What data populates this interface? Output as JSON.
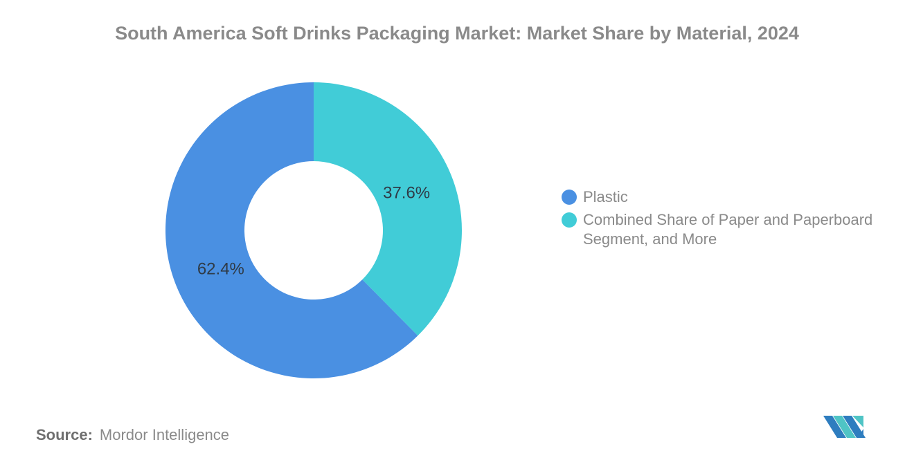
{
  "chart_data": {
    "type": "pie",
    "subtype": "donut",
    "title": "South America Soft Drinks Packaging Market: Market Share by Material, 2024",
    "series": [
      {
        "name": "Plastic",
        "value": 62.4,
        "label": "62.4%",
        "color": "#4A90E2"
      },
      {
        "name": "Combined Share of Paper and Paperboard Segment, and More",
        "value": 37.6,
        "label": "37.6%",
        "color": "#41CCD7"
      }
    ],
    "start_angle_deg": 0,
    "direction": "counterclockwise",
    "outer_radius": 214,
    "inner_radius": 100,
    "label_radius": 145,
    "label_color": "#2F3B47",
    "legend_position": "right",
    "grid": false
  },
  "source": {
    "prefix": "Source:",
    "text": "Mordor Intelligence"
  },
  "logo": {
    "name": "mordor-intelligence-monogram",
    "blue": "#2E7DBF",
    "teal": "#4FC4C5"
  }
}
